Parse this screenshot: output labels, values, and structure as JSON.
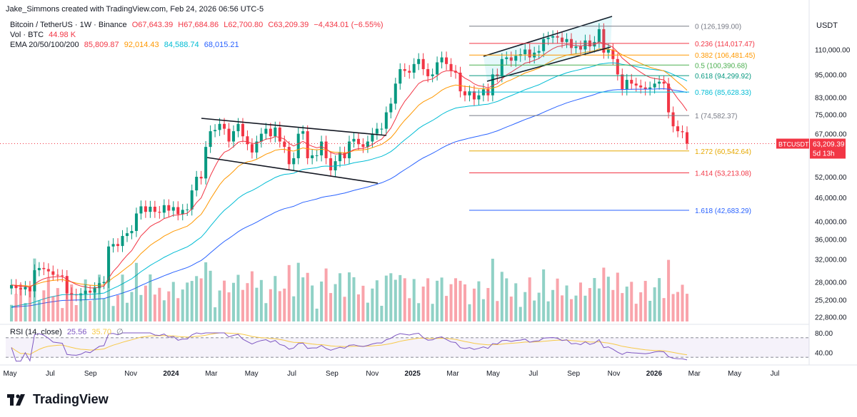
{
  "credit": "Jake_Simmons created with TradingView.com, Feb 24, 2026 06:56 UTC-5",
  "legend": {
    "symbol": "Bitcoin / TetherUS · 1W · Binance",
    "open": "O67,643.39",
    "high": "H67,684.86",
    "low": "L62,700.80",
    "close": "C63,209.39",
    "change": "−4,434.01 (−6.55%)",
    "vol_label": "Vol · BTC",
    "vol_value": "44.98 K",
    "ema_label": "EMA 20/50/100/200",
    "ema20": "85,809.87",
    "ema50": "92,014.43",
    "ema100": "84,588.74",
    "ema200": "68,015.21",
    "rsi_label": "RSI (14, close)",
    "rsi_value": "25.56",
    "rsi_ma": "35.70",
    "rsi_na": "∅"
  },
  "price_scale": {
    "unit": "USDT",
    "ticks": [
      "110,000.00",
      "95,000.00",
      "83,000.00",
      "75,000.00",
      "67,000.00",
      "52,000.00",
      "46,000.00",
      "40,000.00",
      "36,000.00",
      "32,000.00",
      "28,000.00",
      "25,200.00",
      "22,800.00"
    ],
    "last_symbol": "BTCUSDT",
    "last_price": "63,209.39",
    "countdown": "5d 13h"
  },
  "rsi_scale": {
    "ticks": [
      "80.00",
      "40.00"
    ]
  },
  "time_axis": {
    "labels": [
      "May",
      "Jul",
      "Sep",
      "Nov",
      "2024",
      "Mar",
      "May",
      "Jul",
      "Sep",
      "Nov",
      "2025",
      "Mar",
      "May",
      "Jul",
      "Sep",
      "Nov",
      "2026",
      "Mar",
      "May",
      "Jul"
    ]
  },
  "fib_levels": [
    {
      "ratio": "0",
      "price": "126,199.00",
      "label": "0 (126,199.00)",
      "color": "#787b86"
    },
    {
      "ratio": "0.236",
      "price": "114,017.47",
      "label": "0.236 (114,017.47)",
      "color": "#f23645"
    },
    {
      "ratio": "0.382",
      "price": "106,481.45",
      "label": "0.382 (106,481.45)",
      "color": "#ff9800"
    },
    {
      "ratio": "0.5",
      "price": "100,390.68",
      "label": "0.5 (100,390.68)",
      "color": "#4caf50"
    },
    {
      "ratio": "0.618",
      "price": "94,299.92",
      "label": "0.618 (94,299.92)",
      "color": "#089981"
    },
    {
      "ratio": "0.786",
      "price": "85,628.33",
      "label": "0.786 (85,628.33)",
      "color": "#00bcd4"
    },
    {
      "ratio": "1",
      "price": "74,582.37",
      "label": "1 (74,582.37)",
      "color": "#787b86"
    },
    {
      "ratio": "1.272",
      "price": "60,542.64",
      "label": "1.272 (60,542.64)",
      "color": "#e6a800"
    },
    {
      "ratio": "1.414",
      "price": "53,213.08",
      "label": "1.414 (53,213.08)",
      "color": "#f23645"
    },
    {
      "ratio": "1.618",
      "price": "42,683.29",
      "label": "1.618 (42,683.29)",
      "color": "#2962ff"
    }
  ],
  "colors": {
    "up": "#089981",
    "down": "#f23645",
    "ema20": "#f23645",
    "ema50": "#ff9800",
    "ema100": "#00bcd4",
    "ema200": "#2962ff",
    "rsi": "#7e57c2",
    "rsi_ma": "#f7c948",
    "bg_text": "#131722"
  },
  "brand": "TradingView",
  "chart_data": {
    "type": "candlestick",
    "symbol": "BTCUSDT",
    "interval": "1W",
    "axis": "log",
    "price_range": [
      22000,
      140000
    ],
    "start": "2023-05",
    "end": "2026-02-24",
    "closes": [
      27500,
      27000,
      26800,
      27200,
      26500,
      30000,
      30400,
      30200,
      29800,
      29200,
      29100,
      29000,
      26200,
      26000,
      25900,
      26100,
      26600,
      26300,
      27000,
      27800,
      28000,
      34500,
      35000,
      34600,
      36700,
      37300,
      37800,
      41900,
      43700,
      42300,
      43600,
      42300,
      42100,
      44000,
      42600,
      43500,
      41700,
      42800,
      42900,
      48000,
      52000,
      51500,
      62000,
      68000,
      68500,
      71000,
      69000,
      64000,
      68000,
      71000,
      66000,
      63000,
      60000,
      64000,
      67000,
      69000,
      66000,
      69500,
      64000,
      62000,
      56000,
      58000,
      67000,
      68000,
      58000,
      59000,
      59000,
      64000,
      58000,
      54000,
      57000,
      60000,
      58000,
      64000,
      65000,
      63000,
      62000,
      64000,
      67000,
      69000,
      69000,
      76000,
      80000,
      90000,
      98000,
      97000,
      96000,
      101000,
      104000,
      98000,
      94000,
      95000,
      102000,
      105000,
      101000,
      97000,
      96000,
      86000,
      84000,
      86000,
      82000,
      84000,
      87000,
      84000,
      95000,
      94000,
      104000,
      105000,
      103000,
      106000,
      107000,
      110000,
      105000,
      108000,
      109000,
      117000,
      118000,
      119000,
      118000,
      115000,
      117000,
      111000,
      112000,
      110000,
      116000,
      112000,
      115000,
      124000,
      108000,
      110000,
      104000,
      95000,
      87000,
      92000,
      90000,
      89000,
      88000,
      87000,
      88000,
      90000,
      91000,
      90000,
      76000,
      70000,
      68000,
      67600,
      63209
    ],
    "ema20_last": 85809.87,
    "ema50_last": 92014.43,
    "ema100_last": 84588.74,
    "ema200_last": 68015.21,
    "volume_last": 44980,
    "rsi_last": 25.56,
    "rsi_ma_last": 35.7
  }
}
